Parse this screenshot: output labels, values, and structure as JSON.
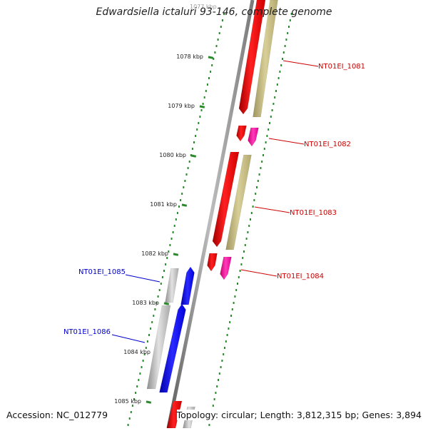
{
  "title": "Edwardsiella ictaluri 93-146, complete genome",
  "footer": {
    "accession": "Accession: NC_012779",
    "summary": "Topology: circular; Length: 3,812,315 bp; Genes: 3,894"
  },
  "backbone": {
    "color": "#8c8c8c"
  },
  "ticks": {
    "unit": "kbp",
    "top_partial_label": "1077 kbp",
    "labels": [
      "1078 kbp",
      "1079 kbp",
      "1080 kbp",
      "1081 kbp",
      "1082 kbp",
      "1083 kbp",
      "1084 kbp",
      "1085 kbp"
    ],
    "color": "#2a8a2a"
  },
  "genes_forward": [
    {
      "label": "NT01EI_1081",
      "color": "#cc0000",
      "kind": "CDS"
    },
    {
      "label": "NT01EI_1082",
      "color": "#cc0000",
      "kind": "CDS"
    },
    {
      "label": "NT01EI_1083",
      "color": "#cc0000",
      "kind": "CDS"
    },
    {
      "label": "NT01EI_1084",
      "color": "#cc0000",
      "kind": "CDS"
    }
  ],
  "genes_reverse": [
    {
      "label": "NT01EI_1085",
      "color": "#0000cc",
      "kind": "CDS"
    },
    {
      "label": "NT01EI_1086",
      "color": "#0000cc",
      "kind": "CDS"
    }
  ],
  "colors": {
    "forward_cds": "#ff0000",
    "forward_feature": "#c2b880",
    "forward_feature_small": "#ff1aa8",
    "reverse_cds": "#0000ff",
    "reverse_feature": "#bdbdbd",
    "forward_label": "#cc0000",
    "reverse_label": "#0000cc"
  }
}
